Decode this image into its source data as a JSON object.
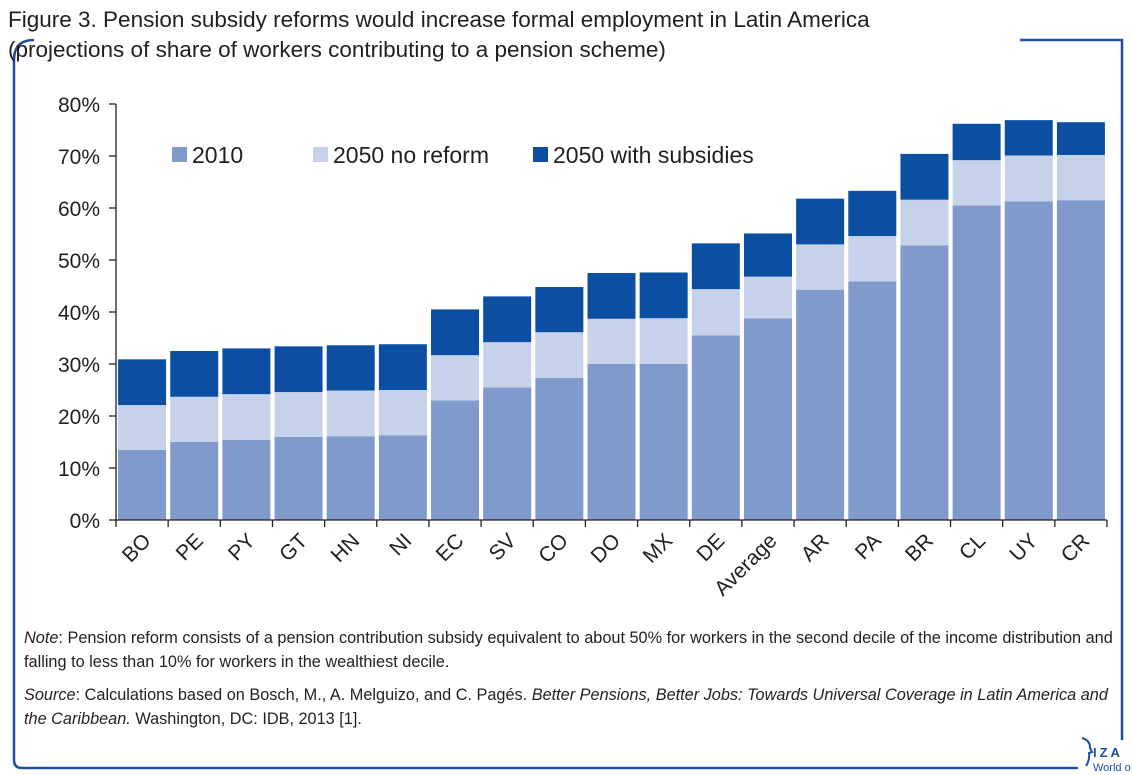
{
  "title_line1": "Figure 3. Pension subsidy reforms would increase formal employment in Latin America",
  "title_line2": "(projections of share of workers contributing to a pension scheme)",
  "note_label": "Note",
  "note_text": ": Pension reform consists of a pension contribution subsidy equivalent to about 50% for workers in the second decile of the income distribution and falling to less than 10% for workers in the wealthiest decile.",
  "source_label": "Source",
  "source_text_1": ": Calculations based on Bosch, M., A. Melguizo, and C. Pagés. ",
  "source_italic": "Better Pensions, Better Jobs: Towards Universal Coverage in Latin America and the Caribbean.",
  "source_text_2": " Washington, DC: IDB, 2013 [1].",
  "logo": {
    "text": "IZA",
    "sub": "World of Labor",
    "icon": "head-profile-icon"
  },
  "colors": {
    "frame": "#1f4e9a",
    "s2010": "#7f9acb",
    "s2050_no": "#c6d2ea",
    "s2050_sub": "#0b4ea2",
    "axis": "#231f20"
  },
  "chart_data": {
    "type": "bar",
    "stacked": true,
    "title": "Figure 3. Pension subsidy reforms would increase formal employment in Latin America",
    "subtitle": "(projections of share of workers contributing to a pension scheme)",
    "categories": [
      "BO",
      "PE",
      "PY",
      "GT",
      "HN",
      "NI",
      "EC",
      "SV",
      "CO",
      "DO",
      "MX",
      "DE",
      "Average",
      "AR",
      "PA",
      "BR",
      "CL",
      "UY",
      "CR"
    ],
    "series": [
      {
        "name": "2010",
        "values": [
          13.5,
          15,
          15.4,
          16,
          16.1,
          16.3,
          23,
          25.5,
          27.3,
          30,
          30,
          35.5,
          38.8,
          44.3,
          45.9,
          52.8,
          60.5,
          61.3,
          61.5
        ]
      },
      {
        "name": "2050 no reform",
        "values": [
          8.6,
          8.7,
          8.8,
          8.6,
          8.8,
          8.7,
          8.7,
          8.7,
          8.8,
          8.7,
          8.8,
          8.9,
          8,
          8.7,
          8.7,
          8.8,
          8.7,
          8.8,
          8.7
        ]
      },
      {
        "name": "2050 with subsidies",
        "values": [
          8.8,
          8.8,
          8.8,
          8.8,
          8.7,
          8.8,
          8.8,
          8.8,
          8.7,
          8.8,
          8.8,
          8.8,
          8.3,
          8.8,
          8.7,
          8.8,
          7,
          6.8,
          6.3
        ]
      }
    ],
    "ylim": [
      0,
      80
    ],
    "yticks": [
      "0%",
      "10%",
      "20%",
      "30%",
      "40%",
      "50%",
      "60%",
      "70%",
      "80%"
    ],
    "ytick_values": [
      0,
      10,
      20,
      30,
      40,
      50,
      60,
      70,
      80
    ],
    "xlabel": "",
    "ylabel": "",
    "legend": "top-left",
    "grid": false
  }
}
